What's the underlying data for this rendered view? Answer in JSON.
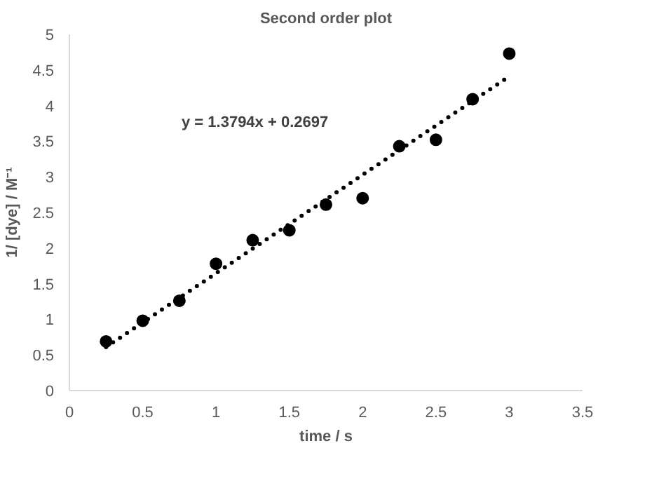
{
  "chart_data": {
    "type": "scatter",
    "title": "Second order plot",
    "xlabel": "time / s",
    "ylabel": "1/ [dye] / M⁻¹",
    "x": [
      0.25,
      0.5,
      0.75,
      1,
      1.25,
      1.5,
      1.75,
      2,
      2.25,
      2.5,
      2.75,
      3
    ],
    "series": [
      {
        "color": "#000000",
        "marker": "circle",
        "values": [
          0.69,
          0.98,
          1.26,
          1.78,
          2.11,
          2.25,
          2.61,
          2.7,
          3.43,
          3.52,
          4.09,
          4.73
        ]
      },
      {
        "type": "line",
        "color": "#000000",
        "line_style": "dotted",
        "marker": "none",
        "x": [
          0.25,
          3
        ],
        "values": [
          0.61,
          4.41
        ]
      }
    ],
    "annotations": [
      "y = 1.3794x + 0.2697"
    ],
    "xlim": [
      0,
      3.5
    ],
    "xticks": [
      0,
      0.5,
      1,
      1.5,
      2,
      2.5,
      3,
      3.5
    ],
    "ylim": [
      0,
      5
    ],
    "yticks": [
      0,
      0.5,
      1,
      1.5,
      2,
      2.5,
      3,
      3.5,
      4,
      4.5,
      5
    ],
    "grid": false
  }
}
